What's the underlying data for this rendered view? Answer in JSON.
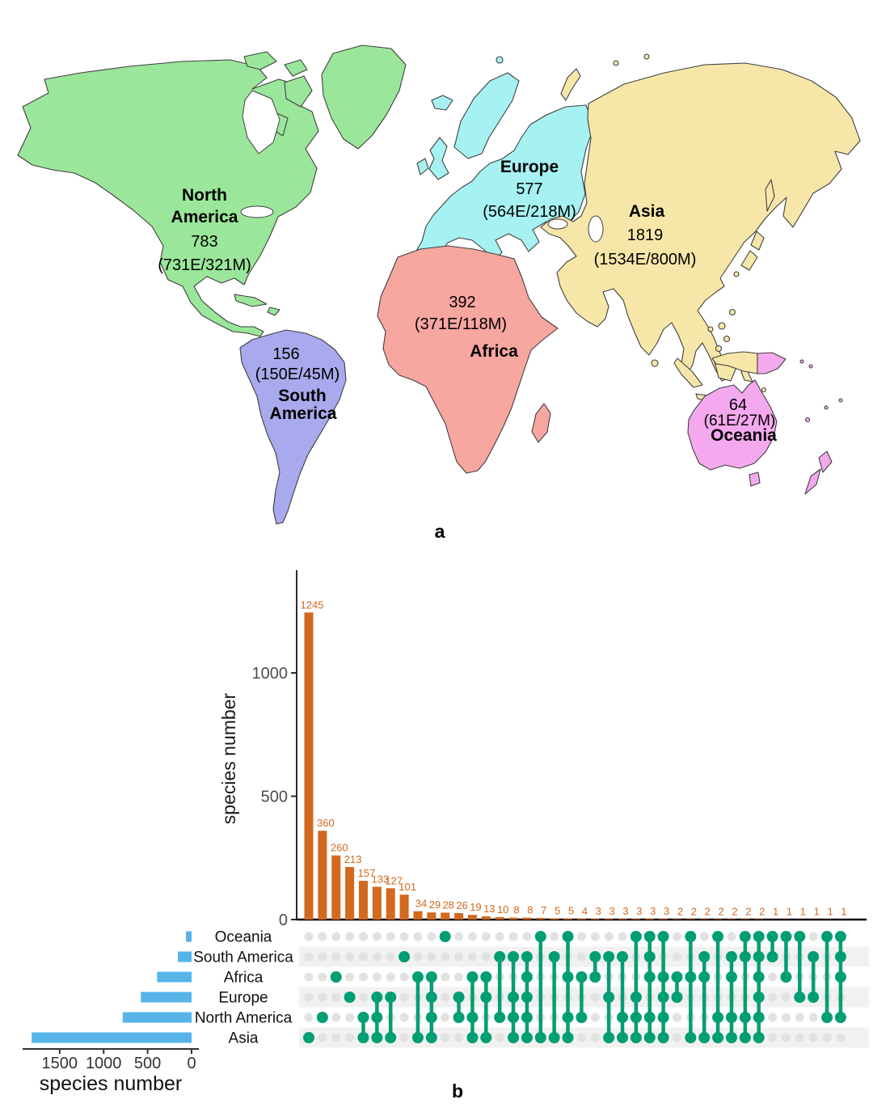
{
  "figure": {
    "panel_a_label": "a",
    "panel_b_label": "b"
  },
  "map": {
    "continents": [
      {
        "name": "North America",
        "label_lines": [
          "North",
          "America"
        ],
        "value": "783",
        "detail": "(731E/321M)",
        "color": "#9AE69A"
      },
      {
        "name": "South America",
        "label_lines": [
          "South",
          "America"
        ],
        "value": "156",
        "detail": "(150E/45M)",
        "color": "#A9A9ED"
      },
      {
        "name": "Europe",
        "value": "577",
        "detail": "(564E/218M)",
        "color": "#A6F1F1"
      },
      {
        "name": "Africa",
        "value": "392",
        "detail": "(371E/118M)",
        "color": "#F7A6A0"
      },
      {
        "name": "Asia",
        "value": "1819",
        "detail": "(1534E/800M)",
        "color": "#F6E7A9"
      },
      {
        "name": "Oceania",
        "value": "64",
        "detail": "(61E/27M)",
        "color": "#F4A9EF"
      }
    ]
  },
  "chart_data": [
    {
      "type": "bar",
      "panel": "b-top-intersection-sizes",
      "ylabel": "species number",
      "yticks": [
        0,
        500,
        1000
      ],
      "ylim": [
        0,
        1300
      ],
      "grid": false,
      "bar_color": "#D2691E",
      "values": [
        1245,
        360,
        260,
        213,
        157,
        133,
        127,
        101,
        34,
        29,
        28,
        26,
        19,
        13,
        10,
        8,
        8,
        7,
        5,
        5,
        4,
        3,
        3,
        3,
        3,
        3,
        3,
        2,
        2,
        2,
        2,
        2,
        2,
        2,
        1,
        1,
        1,
        1,
        1,
        1
      ],
      "intersections": [
        [
          "Asia"
        ],
        [
          "North America"
        ],
        [
          "Africa"
        ],
        [
          "Europe"
        ],
        [
          "North America",
          "Asia"
        ],
        [
          "Europe",
          "North America",
          "Asia"
        ],
        [
          "Europe",
          "Asia"
        ],
        [
          "South America"
        ],
        [
          "Africa",
          "Asia"
        ],
        [
          "Africa",
          "Europe",
          "North America",
          "Asia"
        ],
        [
          "Oceania"
        ],
        [
          "Europe",
          "North America"
        ],
        [
          "Africa",
          "North America",
          "Asia"
        ],
        [
          "Africa",
          "Europe",
          "Asia"
        ],
        [
          "South America",
          "North America"
        ],
        [
          "South America",
          "Europe",
          "North America",
          "Asia"
        ],
        [
          "South America",
          "Africa",
          "Europe",
          "North America",
          "Asia"
        ],
        [
          "Oceania",
          "Asia"
        ],
        [
          "South America",
          "Asia"
        ],
        [
          "Oceania",
          "Africa",
          "North America",
          "Asia"
        ],
        [
          "Africa",
          "North America"
        ],
        [
          "South America",
          "Africa"
        ],
        [
          "South America",
          "Europe",
          "Asia"
        ],
        [
          "South America",
          "North America",
          "Asia"
        ],
        [
          "Oceania",
          "Europe",
          "North America",
          "Asia"
        ],
        [
          "Oceania",
          "South America",
          "Africa",
          "North America",
          "Asia"
        ],
        [
          "Oceania",
          "Africa",
          "Europe",
          "North America",
          "Asia"
        ],
        [
          "Africa",
          "Europe"
        ],
        [
          "Oceania",
          "Africa",
          "Asia"
        ],
        [
          "South America",
          "Africa",
          "Asia"
        ],
        [
          "Oceania",
          "North America",
          "Asia"
        ],
        [
          "South America",
          "Africa",
          "North America",
          "Asia"
        ],
        [
          "Oceania",
          "South America",
          "North America",
          "Asia"
        ],
        [
          "Oceania",
          "South America",
          "Africa",
          "Europe",
          "North America",
          "Asia"
        ],
        [
          "Oceania",
          "South America"
        ],
        [
          "Oceania",
          "Africa"
        ],
        [
          "Oceania",
          "Europe"
        ],
        [
          "South America",
          "Europe"
        ],
        [
          "Oceania",
          "North America"
        ],
        [
          "Oceania",
          "South America",
          "Africa",
          "North America"
        ]
      ]
    },
    {
      "type": "bar",
      "panel": "b-left-set-sizes",
      "orientation": "horizontal",
      "xlabel": "species number",
      "xticks": [
        1500,
        1000,
        500,
        0
      ],
      "categories": [
        "Oceania",
        "South America",
        "Africa",
        "Europe",
        "North America",
        "Asia"
      ],
      "values": [
        64,
        156,
        392,
        577,
        783,
        1819
      ],
      "bar_color": "#56B4E9"
    }
  ],
  "upset": {
    "rows": [
      "Oceania",
      "South America",
      "Africa",
      "Europe",
      "North America",
      "Asia"
    ],
    "active_dot_color": "#009E73",
    "inactive_dot_color": "#E2E2E2",
    "band_color": "#F1F1F1",
    "value_label_color": "#D2691E",
    "axis_color": "#000000",
    "tick_label_color": "#4d4d4d"
  }
}
